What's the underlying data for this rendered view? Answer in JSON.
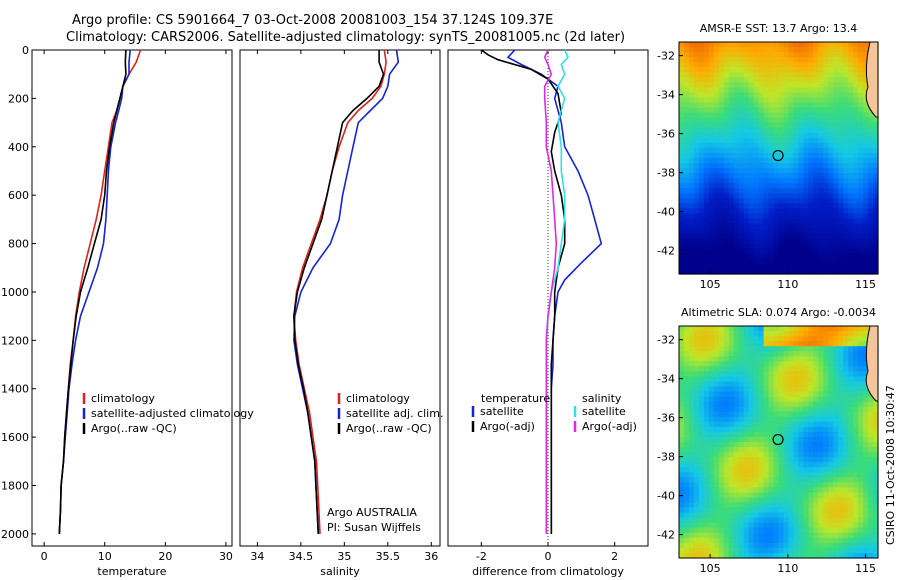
{
  "header": {
    "title_line1": "Argo profile: CS 5901664_7 03-Oct-2008 20081003_154 37.124S 109.37E",
    "title_line2": "Climatology: CARS2006. Satellite-adjusted climatology: synTS_20081005.nc (2d later)"
  },
  "side_label": "CSIRO 11-Oct-2008 10:30:47",
  "colors": {
    "red": "#e0221a",
    "blue": "#1424d8",
    "black": "#000000",
    "cyan": "#30e0e8",
    "magenta": "#e028e8"
  },
  "chart_data": [
    {
      "type": "line",
      "name": "temperature-profile",
      "xlabel": "temperature",
      "ylabel": "",
      "xlim": [
        -2,
        31
      ],
      "ylim": [
        2050,
        0
      ],
      "xticks": [
        0,
        10,
        20,
        30
      ],
      "yticks": [
        0,
        200,
        400,
        600,
        800,
        1000,
        1200,
        1400,
        1600,
        1800,
        2000
      ],
      "legend": [
        "climatology",
        "satellite-adjusted climatology",
        "Argo(..raw -QC)"
      ],
      "legend_position": "lower-right",
      "series": [
        {
          "name": "climatology",
          "color": "red",
          "x": [
            15.9,
            15.2,
            14.0,
            13.0,
            12.5,
            12.0,
            11.2,
            10.6,
            10.0,
            9.4,
            8.6,
            7.6,
            6.6,
            5.8,
            5.2,
            4.8,
            4.3,
            4.0,
            3.7,
            3.4,
            3.2,
            3.0,
            2.8,
            2.7,
            2.6,
            2.5
          ],
          "y": [
            0,
            50,
            100,
            150,
            200,
            250,
            300,
            400,
            500,
            600,
            700,
            800,
            900,
            1000,
            1100,
            1200,
            1300,
            1400,
            1500,
            1600,
            1700,
            1750,
            1800,
            1900,
            1950,
            2000
          ]
        },
        {
          "name": "satellite-adjusted climatology",
          "color": "blue",
          "x": [
            14.2,
            14.0,
            14.0,
            13.0,
            12.8,
            12.3,
            11.8,
            11.0,
            10.6,
            10.4,
            10.2,
            9.8,
            8.8,
            7.4,
            6.0,
            5.2,
            4.6,
            4.1,
            3.8,
            3.5,
            3.2,
            3.0,
            2.8,
            2.7,
            2.6,
            2.5
          ],
          "y": [
            0,
            50,
            100,
            150,
            200,
            250,
            300,
            400,
            500,
            600,
            700,
            800,
            900,
            1000,
            1100,
            1200,
            1300,
            1400,
            1500,
            1600,
            1700,
            1750,
            1800,
            1900,
            1950,
            2000
          ]
        },
        {
          "name": "Argo(..raw -QC)",
          "color": "black",
          "x": [
            13.5,
            13.4,
            13.5,
            13.0,
            12.5,
            12.0,
            11.5,
            10.8,
            10.3,
            10.0,
            9.4,
            8.3,
            7.2,
            6.0,
            5.3,
            4.8,
            4.4,
            4.0,
            3.7,
            3.4,
            3.2,
            3.0,
            2.8,
            2.7,
            2.6,
            2.5
          ],
          "y": [
            0,
            50,
            100,
            150,
            200,
            250,
            300,
            400,
            500,
            600,
            700,
            800,
            900,
            1000,
            1100,
            1200,
            1300,
            1400,
            1500,
            1600,
            1700,
            1750,
            1800,
            1900,
            1950,
            2000
          ]
        }
      ]
    },
    {
      "type": "line",
      "name": "salinity-profile",
      "xlabel": "salinity",
      "ylabel": "",
      "xlim": [
        33.8,
        36.1
      ],
      "ylim": [
        2050,
        0
      ],
      "xticks": [
        34,
        34.5,
        35,
        35.5,
        36
      ],
      "yticks": [],
      "legend": [
        "climatology",
        "satellite adj. clim.",
        "Argo(..raw -QC)"
      ],
      "legend_position": "lower-right",
      "annotation": [
        "Argo AUSTRALIA",
        "PI: Susan Wijffels"
      ],
      "series": [
        {
          "name": "climatology",
          "color": "red",
          "x": [
            35.46,
            35.48,
            35.46,
            35.42,
            35.32,
            35.16,
            35.04,
            34.94,
            34.86,
            34.8,
            34.72,
            34.62,
            34.52,
            34.45,
            34.42,
            34.44,
            34.48,
            34.54,
            34.6,
            34.64,
            34.68,
            34.7,
            34.72
          ],
          "y": [
            0,
            50,
            100,
            150,
            200,
            250,
            300,
            400,
            500,
            600,
            700,
            800,
            900,
            1000,
            1100,
            1200,
            1300,
            1400,
            1500,
            1600,
            1700,
            1850,
            2000
          ]
        },
        {
          "name": "satellite adj. clim.",
          "color": "blue",
          "x": [
            35.6,
            35.62,
            35.52,
            35.5,
            35.44,
            35.3,
            35.16,
            35.1,
            35.04,
            34.98,
            34.94,
            34.84,
            34.64,
            34.5,
            34.43,
            34.42,
            34.46,
            34.52,
            34.58,
            34.62,
            34.66,
            34.68,
            34.7
          ],
          "y": [
            0,
            50,
            100,
            150,
            200,
            250,
            300,
            400,
            500,
            600,
            700,
            800,
            900,
            1000,
            1100,
            1200,
            1300,
            1400,
            1500,
            1600,
            1700,
            1850,
            2000
          ]
        },
        {
          "name": "Argo(..raw -QC)",
          "color": "black",
          "x": [
            35.4,
            35.4,
            35.45,
            35.4,
            35.26,
            35.1,
            34.98,
            34.92,
            34.86,
            34.8,
            34.74,
            34.64,
            34.54,
            34.46,
            34.42,
            34.43,
            34.47,
            34.53,
            34.58,
            34.62,
            34.66,
            34.68,
            34.7
          ],
          "y": [
            0,
            50,
            100,
            150,
            200,
            250,
            300,
            400,
            500,
            600,
            700,
            800,
            900,
            1000,
            1100,
            1200,
            1300,
            1400,
            1500,
            1600,
            1700,
            1850,
            2000
          ]
        }
      ]
    },
    {
      "type": "line",
      "name": "difference-profile",
      "xlabel": "difference from climatology",
      "ylabel": "",
      "xlim": [
        -3,
        3
      ],
      "ylim": [
        2050,
        0
      ],
      "xticks": [
        -2,
        0,
        2
      ],
      "yticks": [],
      "legend_left_title": "temperature",
      "legend_right_title": "salinity",
      "legend_left": [
        "satellite",
        "Argo(-adj)"
      ],
      "legend_right": [
        "satellite",
        "Argo(-adj)"
      ],
      "legend_position": "lower",
      "series": [
        {
          "name": "temperature satellite",
          "color": "blue",
          "x": [
            -1.0,
            -1.2,
            -0.8,
            -0.2,
            0.3,
            0.2,
            0.4,
            0.5,
            0.9,
            1.2,
            1.4,
            1.6,
            1.0,
            0.5,
            0.3,
            0.2,
            0.15,
            0.15,
            0.1,
            0.1,
            0.1,
            0.1,
            0.1,
            0.1
          ],
          "y": [
            0,
            30,
            60,
            100,
            150,
            200,
            300,
            400,
            500,
            600,
            700,
            800,
            880,
            950,
            1000,
            1100,
            1200,
            1300,
            1400,
            1500,
            1600,
            1700,
            1850,
            2000
          ]
        },
        {
          "name": "temperature Argo(-adj)",
          "color": "black",
          "x": [
            -2.0,
            -1.8,
            -1.5,
            -0.5,
            0.0,
            0.3,
            0.4,
            0.2,
            0.1,
            0.2,
            0.4,
            0.5,
            0.5,
            0.3,
            0.2,
            0.2,
            0.15,
            0.1,
            0.1,
            0.1,
            0.1,
            0.1,
            0.1
          ],
          "y": [
            0,
            20,
            40,
            80,
            120,
            180,
            260,
            340,
            420,
            500,
            600,
            700,
            800,
            900,
            1000,
            1100,
            1200,
            1300,
            1400,
            1500,
            1700,
            1850,
            2000
          ]
        },
        {
          "name": "salinity satellite",
          "color": "cyan",
          "x": [
            0.5,
            0.6,
            0.4,
            0.5,
            0.3,
            0.5,
            0.3,
            0.4,
            0.4,
            0.5,
            0.5,
            0.4,
            0.3,
            0.1,
            0.0,
            -0.05,
            -0.05,
            -0.05,
            -0.05,
            -0.05,
            -0.05,
            -0.05,
            -0.05
          ],
          "y": [
            0,
            30,
            60,
            100,
            150,
            200,
            300,
            400,
            500,
            600,
            700,
            800,
            900,
            1000,
            1100,
            1200,
            1300,
            1400,
            1500,
            1600,
            1700,
            1850,
            2000
          ]
        },
        {
          "name": "salinity Argo(-adj)",
          "color": "magenta",
          "x": [
            0.0,
            -0.1,
            0.0,
            0.1,
            -0.1,
            -0.1,
            -0.05,
            -0.05,
            0.1,
            0.15,
            0.2,
            0.25,
            0.2,
            0.1,
            0.0,
            -0.05,
            -0.05,
            -0.05,
            -0.05,
            -0.05,
            -0.05,
            -0.05,
            -0.05
          ],
          "y": [
            0,
            30,
            60,
            100,
            150,
            200,
            300,
            400,
            500,
            600,
            700,
            800,
            900,
            1000,
            1100,
            1200,
            1300,
            1400,
            1500,
            1600,
            1700,
            1850,
            2000
          ]
        }
      ]
    },
    {
      "type": "heatmap",
      "name": "sst-map",
      "title": "AMSR-E SST: 13.7  Argo: 13.4",
      "xlim": [
        103,
        115.8
      ],
      "ylim": [
        -43.2,
        -31.3
      ],
      "xticks": [
        105,
        110,
        115
      ],
      "yticks": [
        -32,
        -34,
        -36,
        -38,
        -40,
        -42
      ],
      "marker": [
        109.37,
        -37.124
      ]
    },
    {
      "type": "heatmap",
      "name": "sla-map",
      "title": "Altimetric SLA: 0.074  Argo: -0.0034",
      "xlim": [
        103,
        115.8
      ],
      "ylim": [
        -43.2,
        -31.3
      ],
      "xticks": [
        105,
        110,
        115
      ],
      "yticks": [
        -32,
        -34,
        -36,
        -38,
        -40,
        -42
      ],
      "marker": [
        109.37,
        -37.124
      ]
    }
  ]
}
